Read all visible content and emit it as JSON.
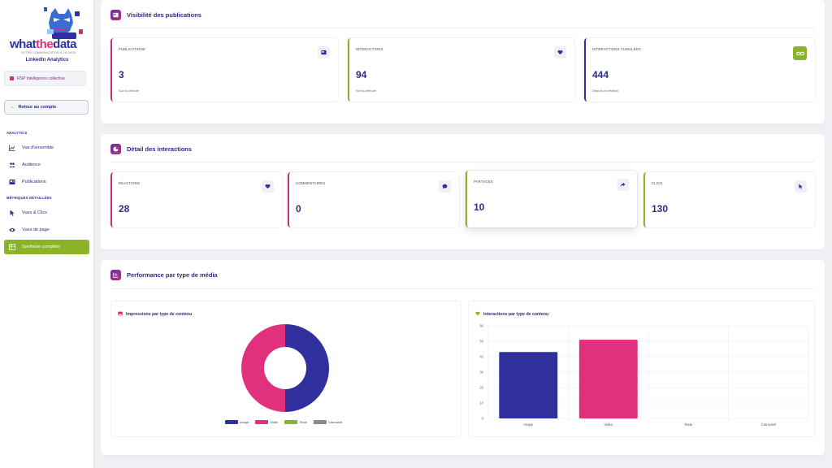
{
  "brand": {
    "logo_pre": "what",
    "logo_mid": "the",
    "logo_post": "data",
    "tagline": "VOTRE COMMUNICATION À LA DATA",
    "app_title": "LinkedIn Analytics"
  },
  "org": {
    "name": "RSP Intelligence collective"
  },
  "back_button": "Retour au compte",
  "nav": {
    "section_analytics": "ANALYTICS",
    "items_analytics": [
      "Vue d'ensemble",
      "Audience",
      "Publications"
    ],
    "section_metrics": "MÉTRIQUES DÉTAILLÉES",
    "items_metrics": [
      "Vues & Clics",
      "Vues de page",
      "Synthèse complète"
    ]
  },
  "visibility": {
    "title": "Visibilité des publications",
    "cards": [
      {
        "label": "PUBLICATIONS",
        "value": "3",
        "sub": "Sur la période",
        "color": "#c8306e"
      },
      {
        "label": "INTERACTIONS",
        "value": "94",
        "sub": "Sur la période",
        "color": "#8ab325"
      },
      {
        "label": "INTERACTIONS CUMULÉES",
        "value": "444",
        "sub": "Depuis la création",
        "color": "#2f2f9e"
      }
    ]
  },
  "interactions": {
    "title": "Détail des interactions",
    "cards": [
      {
        "label": "RÉACTIONS",
        "value": "28",
        "color": "#c8306e"
      },
      {
        "label": "COMMENTAIRES",
        "value": "0",
        "color": "#c8306e"
      },
      {
        "label": "PARTAGES",
        "value": "10",
        "color": "#8ab325"
      },
      {
        "label": "CLICS",
        "value": "130",
        "color": "#8ab325"
      }
    ]
  },
  "performance": {
    "title": "Performance par type de média",
    "donut_title": "Impressions par type de contenu",
    "bar_title": "Interactions par type de contenu"
  },
  "colors": {
    "navy": "#2f2f9e",
    "pink": "#e0307e",
    "green": "#8ab325",
    "grey": "#8a8a8a"
  },
  "chart_data": [
    {
      "type": "pie",
      "title": "Impressions par type de contenu",
      "categories": [
        "Image",
        "Vidéo",
        "Texte",
        "Carrousel"
      ],
      "values": [
        50,
        50,
        0,
        0
      ],
      "legend": "bottom"
    },
    {
      "type": "bar",
      "title": "Interactions par type de contenu",
      "categories": [
        "Image",
        "Vidéo",
        "Texte",
        "Carrousel"
      ],
      "values": [
        43,
        51,
        0,
        0
      ],
      "ylim": [
        0,
        60
      ],
      "yticks": [
        0,
        10,
        20,
        30,
        40,
        50,
        60
      ],
      "grid": true
    }
  ]
}
